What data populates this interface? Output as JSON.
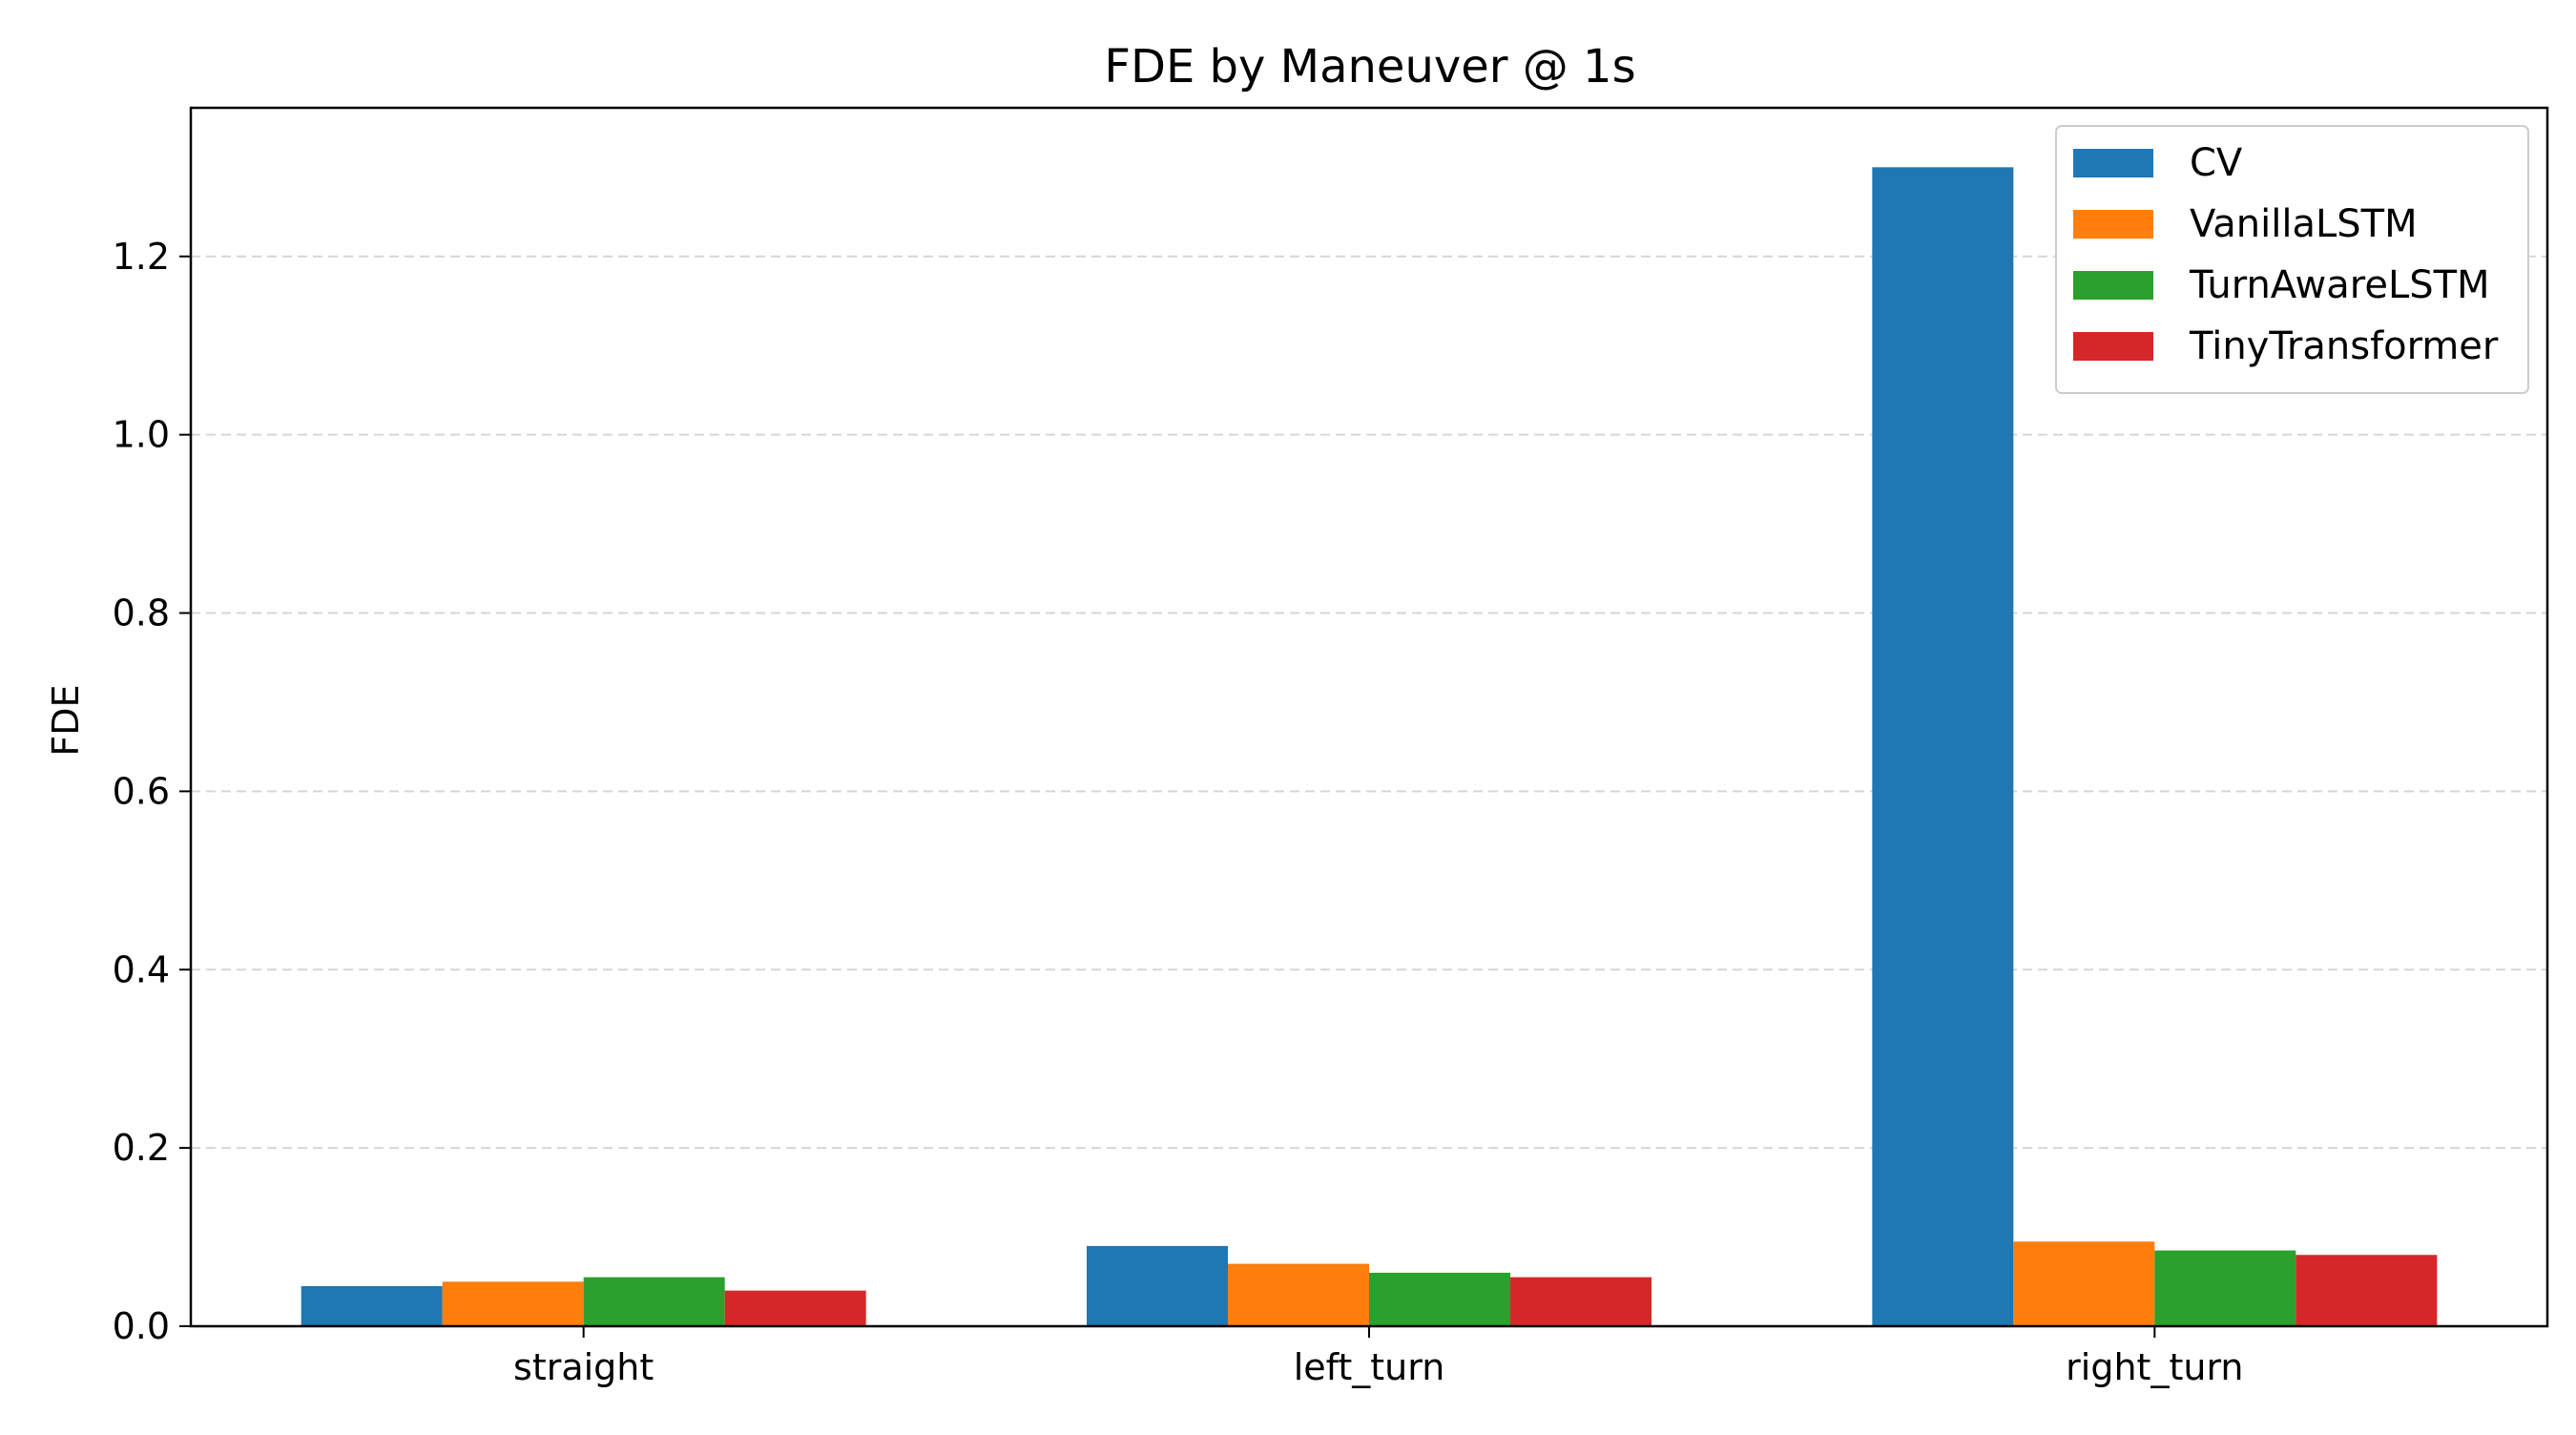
{
  "chart_data": {
    "type": "bar",
    "title": "FDE by Maneuver @ 1s",
    "xlabel": "",
    "ylabel": "FDE",
    "categories": [
      "straight",
      "left_turn",
      "right_turn"
    ],
    "series": [
      {
        "name": "CV",
        "color": "#1f77b4",
        "values": [
          0.045,
          0.09,
          1.3
        ]
      },
      {
        "name": "VanillaLSTM",
        "color": "#ff7f0e",
        "values": [
          0.05,
          0.07,
          0.095
        ]
      },
      {
        "name": "TurnAwareLSTM",
        "color": "#2ca02c",
        "values": [
          0.055,
          0.06,
          0.085
        ]
      },
      {
        "name": "TinyTransformer",
        "color": "#d62728",
        "values": [
          0.04,
          0.055,
          0.08
        ]
      }
    ],
    "ylim": [
      0.0,
      1.3667
    ],
    "yticks": [
      "0.0",
      "0.2",
      "0.4",
      "0.6",
      "0.8",
      "1.0",
      "1.2"
    ],
    "grid": "y-dashed",
    "legend_position": "top-right"
  }
}
